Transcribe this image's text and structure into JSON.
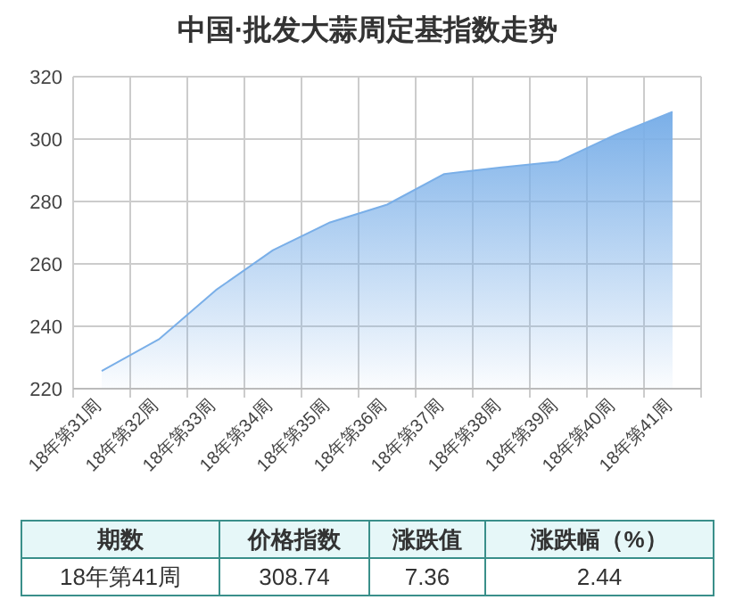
{
  "chart_data": {
    "type": "area",
    "title": "中国·批发大蒜周定基指数走势",
    "categories": [
      "18年第31周",
      "18年第32周",
      "18年第33周",
      "18年第34周",
      "18年第35周",
      "18年第36周",
      "18年第37周",
      "18年第38周",
      "18年第39周",
      "18年第40周",
      "18年第41周"
    ],
    "series": [
      {
        "color": "#7aafe8",
        "values": [
          225.7,
          235.8,
          251.6,
          264.4,
          273.3,
          279.0,
          288.8,
          290.9,
          292.8,
          301.4,
          308.7
        ]
      }
    ],
    "ylim": [
      220,
      320
    ],
    "yticks": [
      220,
      240,
      260,
      280,
      300,
      320
    ],
    "grid": true,
    "annotations": [
      "期数",
      "价格指数",
      "涨跌值",
      "涨跌幅（%）",
      "18年第41周",
      "308.74",
      "7.36",
      "2.44"
    ]
  }
}
